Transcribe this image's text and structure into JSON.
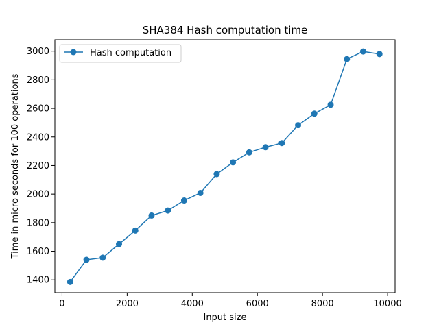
{
  "chart_data": {
    "type": "line",
    "title": "SHA384 Hash computation time",
    "xlabel": "Input size",
    "ylabel": "Time in micro seconds for 100 operations",
    "xlim": [
      -220,
      10230
    ],
    "ylim": [
      1310,
      3080
    ],
    "x_ticks": [
      0,
      2000,
      4000,
      6000,
      8000,
      10000
    ],
    "y_ticks": [
      1400,
      1600,
      1800,
      2000,
      2200,
      2400,
      2600,
      2800,
      3000
    ],
    "grid": false,
    "legend_position": "top-left",
    "series": [
      {
        "name": "Hash computation",
        "color": "#1f77b4",
        "marker": "circle",
        "x": [
          250,
          750,
          1250,
          1750,
          2250,
          2750,
          3250,
          3750,
          4250,
          4750,
          5250,
          5750,
          6250,
          6750,
          7250,
          7750,
          8250,
          8750,
          9250,
          9750
        ],
        "y": [
          1385,
          1540,
          1555,
          1650,
          1745,
          1850,
          1885,
          1955,
          2008,
          2140,
          2222,
          2292,
          2328,
          2357,
          2482,
          2563,
          2625,
          2945,
          2998,
          2980
        ]
      }
    ]
  }
}
